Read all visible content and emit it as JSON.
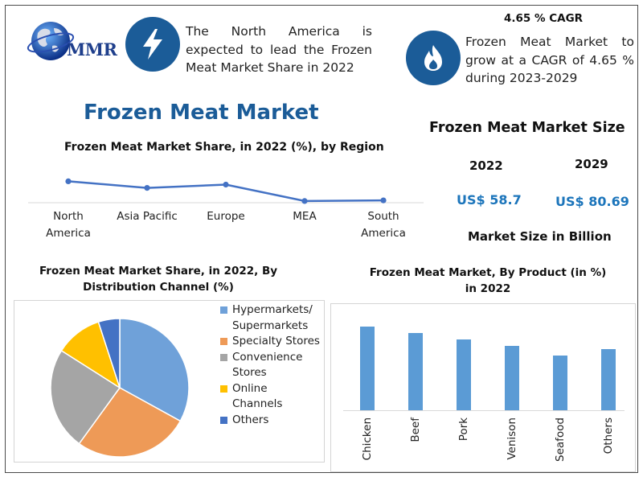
{
  "logo": {
    "text": "MMR"
  },
  "icons": {
    "lightning": "lightning-bolt-icon",
    "flame": "flame-icon",
    "globe": "globe-icon"
  },
  "notes": {
    "north_america_line1": "The North America is",
    "north_america_line2": "expected to lead the Frozen",
    "north_america_line3": "Meat Market Share in 2022",
    "cagr_heading": "4.65 % CAGR",
    "cagr_line1": "Frozen Meat Market to",
    "cagr_line2": "grow at a CAGR of 4.65 %",
    "cagr_line3": "during 2023-2029"
  },
  "main_title": "Frozen Meat Market",
  "size_panel": {
    "title": "Frozen Meat Market Size",
    "year_a": "2022",
    "year_b": "2029",
    "value_a": "US$ 58.7",
    "value_b": "US$ 80.69",
    "caption": "Market Size in Billion"
  },
  "colors": {
    "accent_blue": "#1b5c98",
    "line": "#4472c4",
    "value_text": "#1c75bb"
  },
  "chart_data": [
    {
      "type": "line",
      "title": "Frozen Meat Market Share, in 2022 (%), by Region",
      "categories": [
        "North America",
        "Asia Pacific",
        "Europe",
        "MEA",
        "South America"
      ],
      "category_lines": [
        [
          "North",
          "America"
        ],
        [
          "Asia Pacific"
        ],
        [
          "Europe"
        ],
        [
          "MEA"
        ],
        [
          "South",
          "America"
        ]
      ],
      "values": [
        35,
        25,
        30,
        5,
        6
      ],
      "ylim": [
        0,
        60
      ],
      "grid": false,
      "color": "#4472c4"
    },
    {
      "type": "pie",
      "title_line1": "Frozen Meat Market Share, in 2022, By",
      "title_line2": "Distribution Channel (%)",
      "legend_position": "right",
      "slices": [
        {
          "label": "Hypermarkets/ Supermarkets",
          "label_lines": [
            "Hypermarkets/",
            "Supermarkets"
          ],
          "value": 33,
          "color": "#6fa1d9"
        },
        {
          "label": "Specialty Stores",
          "label_lines": [
            "Specialty Stores"
          ],
          "value": 27,
          "color": "#ee9a57"
        },
        {
          "label": "Convenience Stores",
          "label_lines": [
            "Convenience",
            "Stores"
          ],
          "value": 24,
          "color": "#a5a5a5"
        },
        {
          "label": "Online Channels",
          "label_lines": [
            "Online",
            "Channels"
          ],
          "value": 11,
          "color": "#ffc000"
        },
        {
          "label": "Others",
          "label_lines": [
            "Others"
          ],
          "value": 5,
          "color": "#4472c4"
        }
      ]
    },
    {
      "type": "bar",
      "title_line1": "Frozen Meat Market, By Product (in %)",
      "title_line2": "in 2022",
      "categories": [
        "Chicken",
        "Beef",
        "Pork",
        "Venison",
        "Seafood",
        "Others"
      ],
      "values": [
        26,
        24,
        22,
        20,
        17,
        19
      ],
      "ylim": [
        0,
        30
      ],
      "grid": false,
      "color": "#5b9bd5"
    }
  ]
}
